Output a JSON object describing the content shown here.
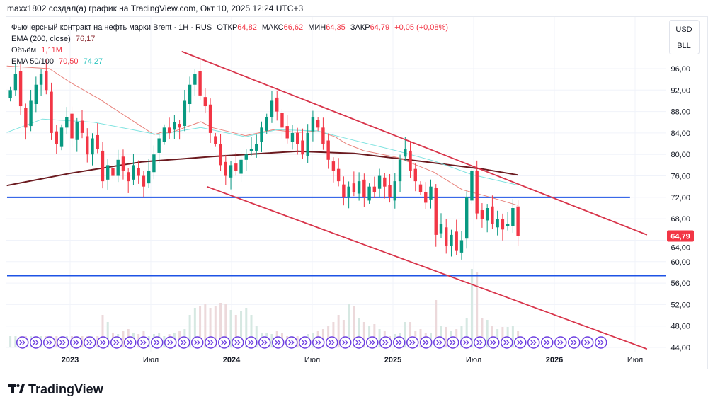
{
  "header": {
    "caption": "maxx1802 создал(а) график на TradingView.com, Окт 10, 2025 12:24 UTC+3"
  },
  "legend": {
    "symbol": "Фьючерсный контракт на нефть марки Brent · 1H · RUS",
    "open_label": "ОТКР",
    "open": "64,82",
    "high_label": "МАКС",
    "high": "66,62",
    "low_label": "МИН",
    "low": "64,35",
    "close_label": "ЗАКР",
    "close": "64,79",
    "change": "+0,05 (+0,08%)",
    "ema200_label": "EMA (200, close)",
    "ema200_value": "76,17",
    "volume_label": "Объём",
    "volume_value": "1,11M",
    "ema50_100_label": "EMA 50/100",
    "ema50_value": "70,50",
    "ema100_value": "74,27"
  },
  "price_scale": {
    "currency": "USD",
    "unit": "BLL",
    "current_price_label": "64,79"
  },
  "branding": {
    "logo_text": "TradingView"
  },
  "colors": {
    "up": "#089981",
    "down": "#f23645",
    "ema200": "#6b1a1f",
    "ema50": "#e8837c",
    "ema100": "#7fe3e0",
    "trendline": "#d8344a",
    "hline": "#1e53e5",
    "event": "#6d3fe0",
    "volume": "#d9dde3"
  },
  "chart_data": {
    "type": "candlestick",
    "ylim": [
      42,
      100
    ],
    "x_range": [
      "2022-08-10",
      "2026-09-10"
    ],
    "yticks": [
      "96,00",
      "92,00",
      "88,00",
      "84,00",
      "80,00",
      "76,00",
      "72,00",
      "68,00",
      "64,00",
      "60,00",
      "56,00",
      "52,00",
      "48,00",
      "44,00"
    ],
    "ytick_values": [
      96,
      92,
      88,
      84,
      80,
      76,
      72,
      68,
      64,
      60,
      56,
      52,
      48,
      44
    ],
    "xticks": [
      {
        "label": "2023",
        "date": "2023-01-01",
        "bold": true
      },
      {
        "label": "Июл",
        "date": "2023-07-01",
        "bold": false
      },
      {
        "label": "2024",
        "date": "2024-01-01",
        "bold": true
      },
      {
        "label": "Июл",
        "date": "2024-07-01",
        "bold": false
      },
      {
        "label": "2025",
        "date": "2025-01-01",
        "bold": true
      },
      {
        "label": "Июл",
        "date": "2025-07-01",
        "bold": false
      },
      {
        "label": "2026",
        "date": "2026-01-01",
        "bold": true
      },
      {
        "label": "Июл",
        "date": "2026-07-01",
        "bold": false
      }
    ],
    "candles": {
      "first_date": "2022-08-18",
      "last_date": "2025-10-10",
      "close": [
        92,
        95,
        89,
        85,
        90,
        93,
        95,
        92,
        84,
        82,
        85,
        87,
        83,
        86,
        84,
        80,
        83,
        81,
        75,
        78,
        76,
        79,
        77,
        75,
        78,
        76,
        74,
        77,
        80,
        83,
        85,
        84,
        86,
        85,
        90,
        93,
        95,
        91,
        89,
        84,
        82,
        78,
        76,
        78,
        77,
        79,
        80,
        81,
        82,
        85,
        87,
        90,
        88,
        85,
        83,
        84,
        82,
        80,
        84,
        87,
        85,
        82,
        79,
        77,
        75,
        72,
        74,
        73,
        75,
        72,
        74,
        73,
        76,
        74,
        72,
        75,
        79,
        81,
        77,
        75,
        73,
        71,
        74,
        65,
        67,
        63,
        65,
        62,
        64,
        72,
        77,
        69,
        68,
        70,
        67,
        68,
        66,
        67,
        70,
        64.79
      ],
      "volume_relative": [
        15,
        15,
        15,
        15,
        15,
        15,
        15,
        15,
        15,
        15,
        15,
        15,
        15,
        15,
        15,
        15,
        15,
        15,
        45,
        35,
        20,
        18,
        22,
        25,
        20,
        18,
        22,
        15,
        18,
        20,
        15,
        18,
        20,
        22,
        25,
        45,
        55,
        58,
        60,
        55,
        58,
        62,
        60,
        52,
        45,
        50,
        55,
        45,
        30,
        20,
        20,
        18,
        22,
        20,
        15,
        15,
        15,
        12,
        18,
        20,
        22,
        25,
        30,
        35,
        45,
        38,
        60,
        58,
        40,
        35,
        30,
        32,
        25,
        22,
        15,
        18,
        20,
        35,
        35,
        22,
        25,
        20,
        20,
        66,
        30,
        28,
        22,
        25,
        30,
        40,
        110,
        105,
        40,
        38,
        30,
        25,
        28,
        28,
        30,
        22
      ]
    },
    "series": [
      {
        "name": "EMA (200, close)",
        "dates": [
          "2022-08-10",
          "2023-01-02",
          "2023-06-10",
          "2023-11-17",
          "2024-05-29",
          "2024-10-04",
          "2025-03-15",
          "2025-07-20",
          "2025-10-10"
        ],
        "values": [
          74.2,
          76.5,
          78.6,
          79.6,
          80.6,
          80.2,
          78.6,
          77.3,
          76.17
        ]
      },
      {
        "name": "EMA 50",
        "dates": [
          "2022-08-10",
          "2022-11-15",
          "2023-01-02",
          "2023-03-07",
          "2023-04-08",
          "2023-07-08",
          "2023-07-29",
          "2023-08-14",
          "2023-10-23",
          "2023-11-18",
          "2024-02-02",
          "2024-04-04",
          "2024-05-29",
          "2024-07-12",
          "2024-08-22",
          "2024-09-17",
          "2024-10-26",
          "2025-01-13",
          "2025-04-02",
          "2025-06-06",
          "2025-07-31",
          "2025-10-10"
        ],
        "values": [
          96.5,
          96,
          93.4,
          90.3,
          88.6,
          83.7,
          84.2,
          84,
          86.1,
          85,
          83.5,
          84.6,
          84.1,
          84.4,
          83.3,
          82,
          80.7,
          79.4,
          76.7,
          73.4,
          72.2,
          70.5
        ]
      },
      {
        "name": "EMA 100",
        "dates": [
          "2022-08-10",
          "2022-10-30",
          "2023-02-24",
          "2023-07-17",
          "2023-10-23",
          "2024-02-02",
          "2024-04-12",
          "2024-07-12",
          "2024-09-02",
          "2025-01-08",
          "2025-04-02",
          "2025-06-29",
          "2025-10-10"
        ],
        "values": [
          84.1,
          86.6,
          86,
          83.7,
          85,
          83.3,
          84.6,
          84.4,
          83.3,
          80.7,
          78.8,
          76.2,
          74.27
        ]
      }
    ],
    "trendlines": [
      {
        "from": {
          "date": "2023-09-10",
          "price": 99.2
        },
        "to": {
          "date": "2026-07-28",
          "price": 65.0
        }
      },
      {
        "from": {
          "date": "2023-11-06",
          "price": 74.0
        },
        "to": {
          "date": "2026-07-28",
          "price": 43.7
        }
      }
    ],
    "horizontal_lines": [
      {
        "price": 72.0,
        "from": "2022-08-10",
        "to": "2026-06-20"
      },
      {
        "price": 57.4,
        "from": "2022-08-10",
        "to": "2026-09-10"
      }
    ],
    "current_price": 64.79,
    "events": {
      "icon": "contract-rollover-icon",
      "first_month": "2022-09",
      "last_month": "2026-04"
    }
  }
}
